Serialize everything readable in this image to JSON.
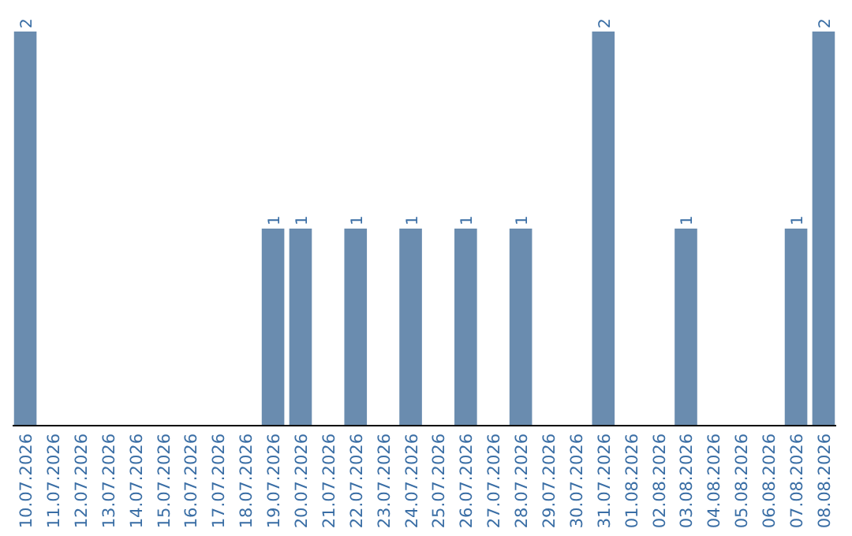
{
  "chart_data": {
    "type": "bar",
    "categories": [
      "10.07.2026",
      "11.07.2026",
      "12.07.2026",
      "13.07.2026",
      "14.07.2026",
      "15.07.2026",
      "16.07.2026",
      "17.07.2026",
      "18.07.2026",
      "19.07.2026",
      "20.07.2026",
      "21.07.2026",
      "22.07.2026",
      "23.07.2026",
      "24.07.2026",
      "25.07.2026",
      "26.07.2026",
      "27.07.2026",
      "28.07.2026",
      "29.07.2026",
      "30.07.2026",
      "31.07.2026",
      "01.08.2026",
      "02.08.2026",
      "03.08.2026",
      "04.08.2026",
      "05.08.2026",
      "06.08.2026",
      "07.08.2026",
      "08.08.2026"
    ],
    "values": [
      2,
      0,
      0,
      0,
      0,
      0,
      0,
      0,
      0,
      1,
      1,
      0,
      1,
      0,
      1,
      0,
      1,
      0,
      1,
      0,
      0,
      2,
      0,
      0,
      1,
      0,
      0,
      0,
      1,
      2
    ],
    "value_labels": [
      "2",
      null,
      null,
      null,
      null,
      null,
      null,
      null,
      null,
      "1",
      "1",
      null,
      "1",
      null,
      "1",
      null,
      "1",
      null,
      "1",
      null,
      null,
      "2",
      null,
      null,
      "1",
      null,
      null,
      null,
      "1",
      "2"
    ],
    "color": "#6a8caf"
  }
}
